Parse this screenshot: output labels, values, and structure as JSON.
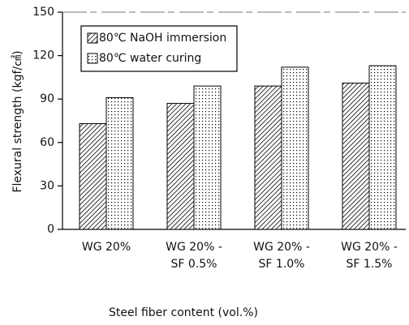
{
  "chart_data": {
    "type": "bar",
    "x_label": "Steel fiber content (vol.%)",
    "y_label": "Flexural strength (kgf/㎠)",
    "categories": [
      "WG 20%",
      "WG 20% -\nSF 0.5%",
      "WG 20% -\nSF 1.0%",
      "WG 20% -\nSF 1.5%"
    ],
    "series": [
      {
        "name": "80℃ NaOH immersion",
        "color": "#000000",
        "pattern": "hatch",
        "values": [
          73,
          87,
          99,
          101
        ]
      },
      {
        "name": "80℃ water curing",
        "color": "#000000",
        "pattern": "dots",
        "values": [
          91,
          99,
          112,
          113
        ]
      }
    ],
    "ylim": [
      0,
      150
    ],
    "yticks": [
      0,
      30,
      60,
      90,
      120,
      150
    ],
    "grid": false,
    "legend": "upper left"
  }
}
